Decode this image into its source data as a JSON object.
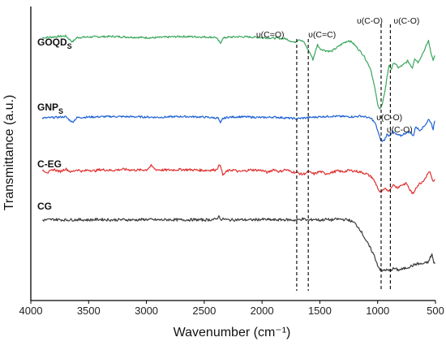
{
  "chart_data": {
    "type": "line",
    "title": "",
    "xlabel": "Wavenumber (cm⁻¹)",
    "ylabel": "Transmittance (a.u.)",
    "xlim": [
      4000,
      500
    ],
    "x_reversed": true,
    "x_ticks": [
      4000,
      3500,
      3000,
      2500,
      2000,
      1500,
      1000,
      500
    ],
    "y_ticks_shown": false,
    "grid": false,
    "legend": "inline labels at left of each trace",
    "series_labels": [
      {
        "text": "GOQD",
        "sub": "S"
      },
      {
        "text": "GNP",
        "sub": "S"
      },
      {
        "text": "C-EG",
        "sub": ""
      },
      {
        "text": "CG",
        "sub": ""
      }
    ],
    "series": [
      {
        "name": "GOQDS",
        "color": "#3aa65c",
        "x": [
          3900,
          3700,
          3640,
          3600,
          3500,
          3300,
          3100,
          2950,
          2800,
          2700,
          2600,
          2400,
          2360,
          2340,
          2300,
          2200,
          2100,
          2000,
          1900,
          1800,
          1720,
          1680,
          1640,
          1600,
          1580,
          1560,
          1520,
          1500,
          1450,
          1400,
          1350,
          1300,
          1250,
          1220,
          1180,
          1120,
          1060,
          1020,
          1000,
          980,
          960,
          940,
          920,
          900,
          880,
          860,
          820,
          780,
          740,
          700,
          680,
          650,
          620,
          590,
          560,
          540,
          520,
          505
        ],
        "y": [
          88.5,
          89.2,
          87.0,
          88.6,
          88.8,
          89.0,
          88.7,
          88.5,
          88.8,
          89.0,
          88.9,
          88.7,
          86.5,
          88.3,
          88.7,
          88.9,
          88.8,
          88.6,
          88.4,
          88.2,
          86.8,
          88.0,
          87.0,
          84.0,
          82.5,
          80.5,
          86.0,
          84.5,
          83.8,
          83.5,
          85.0,
          86.5,
          87.5,
          86.8,
          85.0,
          82.0,
          77.0,
          69.0,
          64.0,
          62.5,
          64.0,
          68.0,
          74.0,
          78.5,
          77.0,
          79.5,
          77.5,
          78.5,
          80.0,
          77.5,
          81.0,
          79.5,
          82.0,
          84.5,
          87.5,
          83.0,
          80.5,
          82.0
        ]
      },
      {
        "name": "GNPS",
        "color": "#1f63d6",
        "x": [
          3900,
          3700,
          3640,
          3600,
          3500,
          3300,
          3100,
          2900,
          2700,
          2500,
          2380,
          2360,
          2340,
          2300,
          2200,
          2100,
          2000,
          1900,
          1800,
          1700,
          1650,
          1600,
          1500,
          1400,
          1300,
          1200,
          1150,
          1100,
          1050,
          1020,
          1000,
          980,
          960,
          940,
          920,
          900,
          870,
          840,
          800,
          760,
          720,
          690,
          670,
          640,
          610,
          580,
          560,
          540,
          520,
          505
        ],
        "y": [
          59.0,
          59.5,
          57.5,
          59.2,
          59.4,
          59.6,
          59.5,
          59.3,
          59.6,
          59.4,
          59.0,
          57.0,
          58.8,
          59.3,
          59.5,
          59.4,
          59.2,
          59.4,
          59.1,
          58.8,
          59.0,
          59.2,
          59.5,
          59.7,
          59.6,
          59.5,
          59.8,
          59.4,
          58.7,
          57.0,
          54.5,
          51.5,
          50.5,
          51.0,
          53.0,
          52.5,
          54.0,
          53.0,
          52.5,
          53.5,
          54.0,
          52.5,
          56.0,
          54.5,
          55.5,
          57.0,
          58.5,
          57.5,
          55.0,
          58.0
        ]
      },
      {
        "name": "C-EG",
        "color": "#e03232",
        "x": [
          3900,
          3850,
          3800,
          3750,
          3700,
          3650,
          3600,
          3550,
          3500,
          3450,
          3400,
          3300,
          3200,
          3100,
          3000,
          2960,
          2920,
          2850,
          2700,
          2600,
          2500,
          2400,
          2360,
          2340,
          2300,
          2250,
          2200,
          2100,
          2000,
          1950,
          1900,
          1850,
          1800,
          1750,
          1700,
          1650,
          1600,
          1550,
          1500,
          1450,
          1400,
          1350,
          1300,
          1250,
          1200,
          1150,
          1100,
          1050,
          1020,
          1000,
          980,
          960,
          930,
          900,
          870,
          830,
          790,
          750,
          720,
          690,
          670,
          640,
          610,
          580,
          560,
          540,
          520,
          505
        ],
        "y": [
          40.0,
          39.0,
          40.2,
          39.3,
          40.4,
          39.2,
          40.1,
          39.4,
          40.0,
          39.6,
          40.1,
          39.8,
          40.2,
          39.9,
          40.0,
          41.5,
          40.1,
          39.9,
          40.1,
          40.0,
          39.8,
          40.0,
          42.0,
          38.0,
          39.6,
          40.0,
          39.3,
          40.0,
          39.8,
          39.0,
          40.2,
          39.3,
          40.1,
          39.4,
          39.0,
          38.3,
          39.2,
          38.5,
          39.4,
          38.6,
          39.0,
          39.6,
          39.3,
          39.8,
          39.6,
          39.2,
          38.6,
          37.3,
          35.3,
          33.5,
          31.5,
          32.2,
          33.0,
          32.3,
          34.5,
          33.5,
          34.5,
          35.0,
          32.5,
          31.0,
          33.5,
          34.8,
          35.8,
          37.5,
          39.5,
          38.5,
          35.5,
          36.5
        ]
      },
      {
        "name": "CG",
        "color": "#3c3c3c",
        "x": [
          3900,
          3800,
          3700,
          3600,
          3500,
          3400,
          3300,
          3200,
          3100,
          3000,
          2900,
          2800,
          2700,
          2600,
          2500,
          2400,
          2370,
          2350,
          2330,
          2300,
          2200,
          2100,
          2000,
          1900,
          1800,
          1700,
          1650,
          1600,
          1550,
          1500,
          1450,
          1400,
          1350,
          1300,
          1250,
          1200,
          1150,
          1100,
          1060,
          1030,
          1000,
          980,
          960,
          940,
          900,
          860,
          820,
          780,
          740,
          700,
          660,
          620,
          590,
          560,
          545,
          530,
          515,
          505
        ],
        "y": [
          21.5,
          21.8,
          21.6,
          21.7,
          21.6,
          21.8,
          21.6,
          21.7,
          21.6,
          21.8,
          21.6,
          21.7,
          21.6,
          21.7,
          21.6,
          21.8,
          23.0,
          21.5,
          22.0,
          21.6,
          21.7,
          21.6,
          21.8,
          21.6,
          21.7,
          21.5,
          22.0,
          21.4,
          21.9,
          21.5,
          21.8,
          21.6,
          21.9,
          21.8,
          21.6,
          20.5,
          18.0,
          14.0,
          11.0,
          8.5,
          5.0,
          3.5,
          2.8,
          3.3,
          3.0,
          3.8,
          3.2,
          3.6,
          4.2,
          4.8,
          5.5,
          5.4,
          5.7,
          6.2,
          7.8,
          9.0,
          5.8,
          5.5
        ]
      }
    ],
    "annotations": [
      {
        "text": "υ(C=O)",
        "x": 1700
      },
      {
        "text": "υ(C=C)",
        "x": 1600
      },
      {
        "text": "υ(C-O)",
        "x": 970
      },
      {
        "text": "υ(C-O)",
        "x": 890
      },
      {
        "text": "υ(C-O)",
        "x": 955
      },
      {
        "text": "υ(C-O)",
        "x": 880
      }
    ]
  }
}
